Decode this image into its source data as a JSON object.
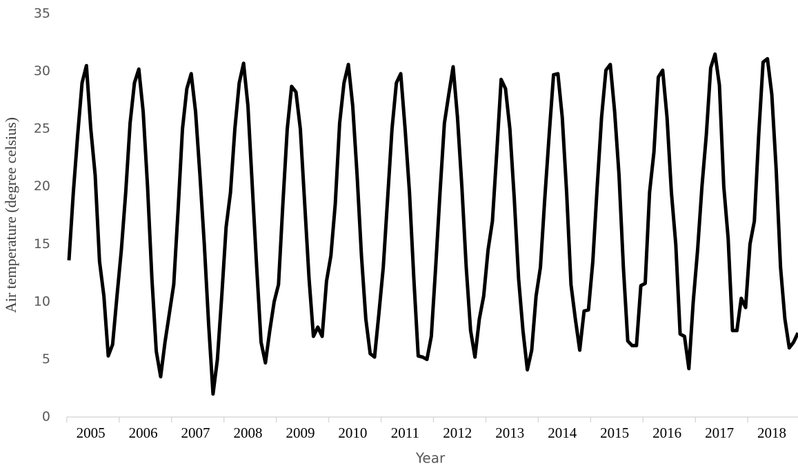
{
  "chart_data": {
    "type": "line",
    "xlabel": "Year",
    "ylabel": "Air temperature (degree celsius)",
    "categories": [
      null,
      null,
      null,
      null,
      null,
      "2005",
      null,
      null,
      null,
      null,
      null,
      null,
      null,
      null,
      null,
      null,
      null,
      "2006",
      null,
      null,
      null,
      null,
      null,
      null,
      null,
      null,
      null,
      null,
      null,
      "2007",
      null,
      null,
      null,
      null,
      null,
      null,
      null,
      null,
      null,
      null,
      null,
      "2008",
      null,
      null,
      null,
      null,
      null,
      null,
      null,
      null,
      null,
      null,
      null,
      "2009",
      null,
      null,
      null,
      null,
      null,
      null,
      null,
      null,
      null,
      null,
      null,
      "2010",
      null,
      null,
      null,
      null,
      null,
      null,
      null,
      null,
      null,
      null,
      null,
      "2011",
      null,
      null,
      null,
      null,
      null,
      null,
      null,
      null,
      null,
      null,
      null,
      "2012",
      null,
      null,
      null,
      null,
      null,
      null,
      null,
      null,
      null,
      null,
      null,
      "2013",
      null,
      null,
      null,
      null,
      null,
      null,
      null,
      null,
      null,
      null,
      null,
      "2014",
      null,
      null,
      null,
      null,
      null,
      null,
      null,
      null,
      null,
      null,
      null,
      "2015",
      null,
      null,
      null,
      null,
      null,
      null,
      null,
      null,
      null,
      null,
      null,
      "2016",
      null,
      null,
      null,
      null,
      null,
      null,
      null,
      null,
      null,
      null,
      null,
      "2017",
      null,
      null,
      null,
      null,
      null,
      null,
      null,
      null,
      null,
      null,
      null,
      "2018",
      null,
      null,
      null,
      null,
      null,
      null
    ],
    "values": [
      13.6,
      19.5,
      24.5,
      29,
      30.5,
      25,
      21,
      13.5,
      10.5,
      5.3,
      6.3,
      10.5,
      14.5,
      19.5,
      25.5,
      29,
      30.2,
      26.5,
      20,
      12,
      5.7,
      3.5,
      6.5,
      9,
      11.5,
      18,
      25,
      28.5,
      29.8,
      26.5,
      21,
      15,
      8,
      2,
      5,
      10.5,
      16.5,
      19.5,
      25,
      29,
      30.7,
      27,
      20,
      13,
      6.5,
      4.7,
      7.5,
      10,
      11.5,
      18.5,
      25,
      28.7,
      28.2,
      25,
      18.5,
      12,
      7,
      7.8,
      7,
      11.8,
      14,
      18.5,
      25.5,
      29,
      30.6,
      27,
      21,
      14,
      8.5,
      5.5,
      5.2,
      9,
      13,
      19,
      25,
      29,
      29.8,
      25,
      19.5,
      12,
      5.3,
      5.2,
      5,
      7,
      13,
      19.5,
      25.5,
      28,
      30.4,
      26,
      20,
      13,
      7.5,
      5.2,
      8.5,
      10.5,
      14.5,
      17,
      23,
      29.3,
      28.5,
      25,
      19,
      12,
      7.5,
      4.1,
      5.8,
      10.5,
      13,
      19,
      24.5,
      29.7,
      29.8,
      26,
      19.5,
      11.5,
      8.5,
      5.8,
      9.2,
      9.3,
      13.5,
      20,
      26,
      30.1,
      30.6,
      26.5,
      21,
      13,
      6.6,
      6.2,
      6.2,
      11.4,
      11.6,
      19.5,
      23,
      29.5,
      30.1,
      26,
      19.5,
      15,
      7.2,
      7,
      4.2,
      10,
      14.5,
      20,
      24.5,
      30.3,
      31.5,
      28.8,
      20,
      15.5,
      7.5,
      7.5,
      10.3,
      9.5,
      15,
      17,
      24.5,
      30.8,
      31.1,
      28,
      21.5,
      13,
      8.5,
      6,
      6.5,
      7.3
    ],
    "color": "#000000",
    "ylim": [
      0,
      35
    ],
    "yticks": [
      0,
      5,
      10,
      15,
      20,
      25,
      30,
      35
    ],
    "grid": false
  }
}
